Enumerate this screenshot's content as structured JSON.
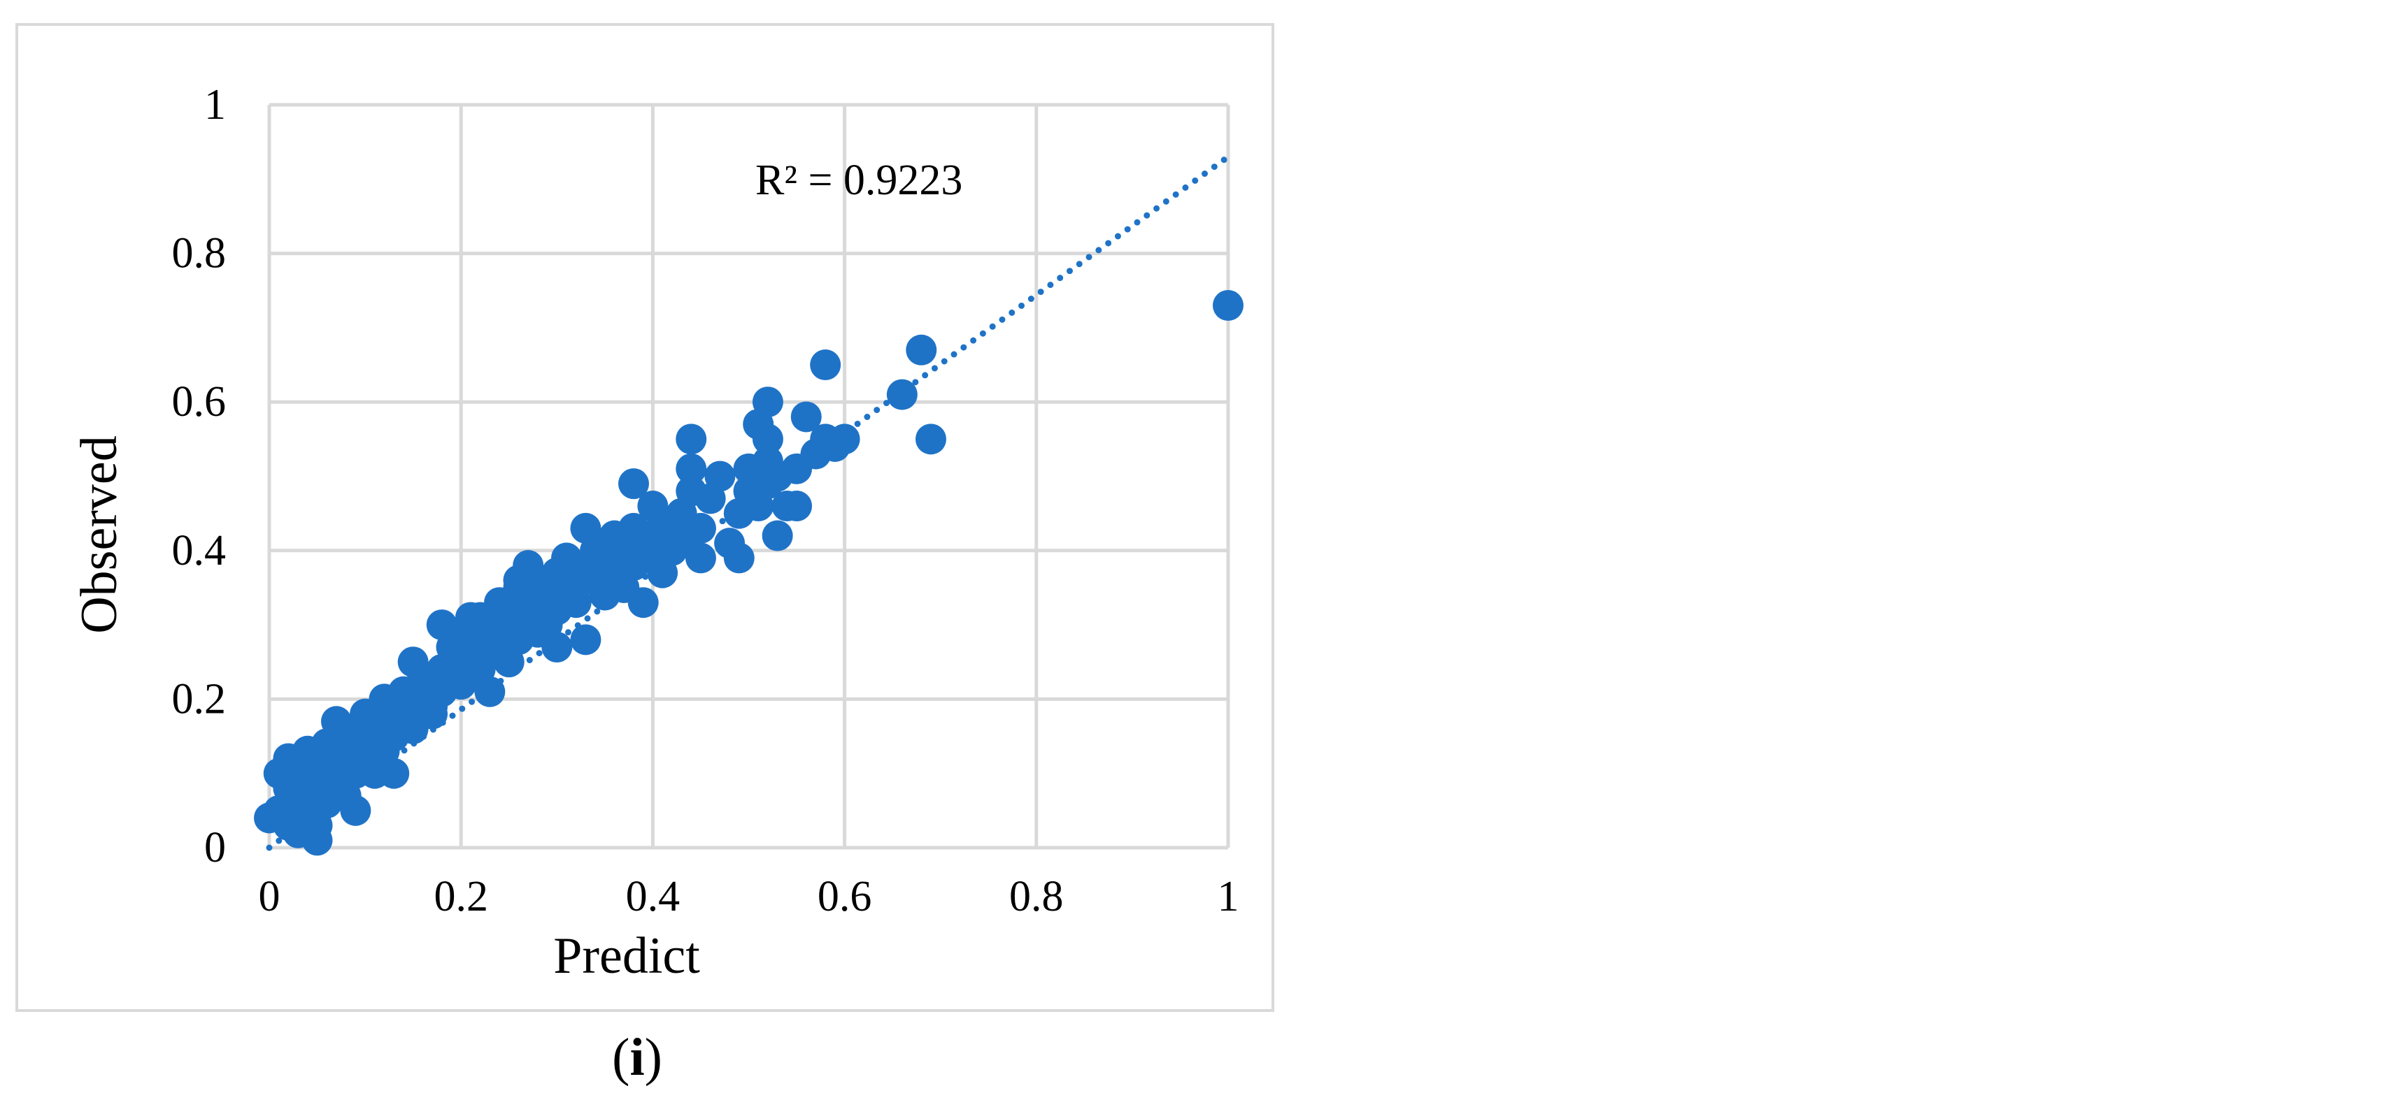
{
  "caption": {
    "open": "(",
    "letter": "i",
    "close": ")"
  },
  "colors": {
    "point": "#1f73c7",
    "grid": "#d9d9d9",
    "trend": "#1f73c7"
  },
  "chart_data": {
    "type": "scatter",
    "title": "",
    "xlabel": "Predict",
    "ylabel": "Observed",
    "xlim": [
      0,
      1
    ],
    "ylim": [
      0,
      1
    ],
    "x_ticks": [
      "0",
      "0.2",
      "0.4",
      "0.6",
      "0.8",
      "1"
    ],
    "y_ticks": [
      "0",
      "0.2",
      "0.4",
      "0.6",
      "0.8",
      "1"
    ],
    "grid": true,
    "legend": "none",
    "annotation": "R² = 0.9223",
    "trendline": {
      "type": "linear",
      "x": [
        0,
        1
      ],
      "y": [
        0.0,
        0.93
      ],
      "style": "dotted"
    },
    "series": [
      {
        "x": [
          0.0,
          0.01,
          0.01,
          0.02,
          0.02,
          0.02,
          0.03,
          0.03,
          0.03,
          0.03,
          0.04,
          0.04,
          0.04,
          0.05,
          0.05,
          0.05,
          0.05,
          0.06,
          0.06,
          0.06,
          0.07,
          0.07,
          0.07,
          0.08,
          0.08,
          0.08,
          0.09,
          0.09,
          0.09,
          0.1,
          0.1,
          0.1,
          0.11,
          0.11,
          0.12,
          0.12,
          0.12,
          0.13,
          0.13,
          0.13,
          0.14,
          0.14,
          0.15,
          0.15,
          0.15,
          0.16,
          0.16,
          0.16,
          0.17,
          0.17,
          0.18,
          0.18,
          0.18,
          0.19,
          0.19,
          0.2,
          0.2,
          0.2,
          0.21,
          0.21,
          0.22,
          0.22,
          0.22,
          0.23,
          0.23,
          0.24,
          0.24,
          0.24,
          0.25,
          0.25,
          0.26,
          0.26,
          0.26,
          0.27,
          0.27,
          0.28,
          0.28,
          0.28,
          0.29,
          0.29,
          0.3,
          0.3,
          0.3,
          0.31,
          0.31,
          0.32,
          0.32,
          0.33,
          0.33,
          0.33,
          0.34,
          0.34,
          0.35,
          0.35,
          0.36,
          0.36,
          0.37,
          0.37,
          0.38,
          0.38,
          0.39,
          0.39,
          0.4,
          0.4,
          0.41,
          0.41,
          0.42,
          0.42,
          0.43,
          0.43,
          0.44,
          0.44,
          0.45,
          0.45,
          0.46,
          0.47,
          0.48,
          0.49,
          0.5,
          0.5,
          0.51,
          0.51,
          0.52,
          0.52,
          0.53,
          0.54,
          0.55,
          0.56,
          0.57,
          0.58,
          0.58,
          0.59,
          0.6,
          0.66,
          0.68,
          0.69,
          0.02,
          0.05,
          0.09,
          0.12,
          0.17,
          0.21,
          0.28,
          0.34,
          0.39,
          0.44,
          0.49,
          0.53,
          0.26,
          0.38,
          0.41,
          0.43,
          0.52,
          0.52,
          0.55,
          1.0
        ],
        "y": [
          0.04,
          0.1,
          0.05,
          0.12,
          0.03,
          0.08,
          0.11,
          0.06,
          0.02,
          0.09,
          0.07,
          0.13,
          0.04,
          0.01,
          0.08,
          0.12,
          0.05,
          0.1,
          0.14,
          0.06,
          0.17,
          0.09,
          0.12,
          0.11,
          0.15,
          0.07,
          0.13,
          0.16,
          0.1,
          0.12,
          0.15,
          0.18,
          0.14,
          0.1,
          0.16,
          0.13,
          0.2,
          0.18,
          0.15,
          0.1,
          0.17,
          0.21,
          0.19,
          0.16,
          0.25,
          0.2,
          0.18,
          0.23,
          0.22,
          0.19,
          0.3,
          0.24,
          0.21,
          0.23,
          0.27,
          0.25,
          0.22,
          0.28,
          0.26,
          0.3,
          0.24,
          0.28,
          0.31,
          0.27,
          0.21,
          0.3,
          0.26,
          0.33,
          0.29,
          0.25,
          0.32,
          0.35,
          0.28,
          0.31,
          0.38,
          0.33,
          0.29,
          0.36,
          0.34,
          0.3,
          0.32,
          0.37,
          0.27,
          0.35,
          0.39,
          0.33,
          0.36,
          0.38,
          0.28,
          0.43,
          0.36,
          0.4,
          0.34,
          0.39,
          0.37,
          0.42,
          0.4,
          0.35,
          0.38,
          0.43,
          0.33,
          0.41,
          0.39,
          0.46,
          0.42,
          0.37,
          0.44,
          0.4,
          0.45,
          0.41,
          0.55,
          0.48,
          0.43,
          0.39,
          0.47,
          0.5,
          0.41,
          0.39,
          0.48,
          0.51,
          0.57,
          0.46,
          0.52,
          0.6,
          0.42,
          0.46,
          0.51,
          0.58,
          0.53,
          0.55,
          0.65,
          0.54,
          0.55,
          0.61,
          0.67,
          0.55,
          0.1,
          0.03,
          0.05,
          0.2,
          0.18,
          0.31,
          0.35,
          0.4,
          0.39,
          0.51,
          0.45,
          0.5,
          0.36,
          0.49,
          0.44,
          0.45,
          0.55,
          0.49,
          0.46,
          0.73
        ]
      }
    ]
  }
}
